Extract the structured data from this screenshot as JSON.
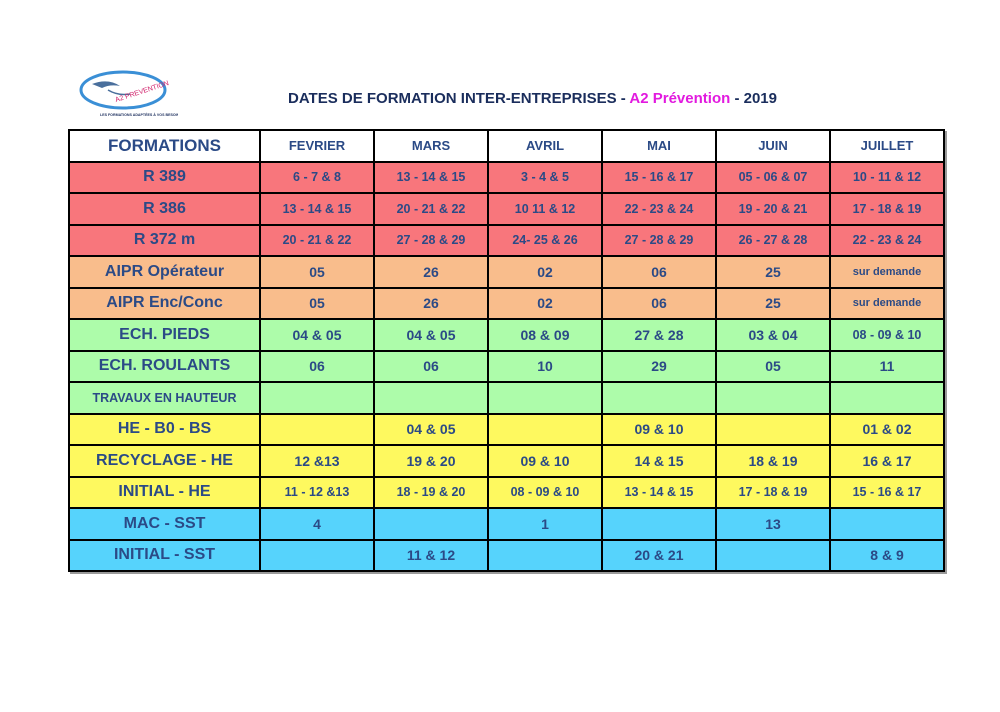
{
  "header": {
    "logo": {
      "text": "A2 PREVENTION",
      "tagline": "LES FORMATIONS ADAPTÉES À VOS BESOINS"
    },
    "title_prefix": "DATES DE FORMATION INTER-ENTREPRISES - ",
    "title_brand": "A2 Prévention",
    "title_suffix": " - 2019"
  },
  "colors": {
    "title": "#1a2d5c",
    "brand": "#e21adf",
    "header_text": "#e0105a",
    "cell_text": "#2b4a86",
    "red": "#f8767c",
    "orange": "#f9bd8c",
    "green": "#adfcaa",
    "yellow": "#fef95f",
    "blue": "#56d3fc"
  },
  "table": {
    "columns": [
      "FORMATIONS",
      "FEVRIER",
      "MARS",
      "AVRIL",
      "MAI",
      "JUIN",
      "JUILLET"
    ],
    "rows": [
      {
        "label": "R 389",
        "color": "red",
        "values": [
          "6 - 7 & 8",
          "13 - 14 & 15",
          "3 - 4 & 5",
          "15 - 16 & 17",
          "05 - 06 & 07",
          "10 - 11 & 12"
        ]
      },
      {
        "label": "R 386",
        "color": "red",
        "values": [
          "13 - 14 & 15",
          "20 - 21 & 22",
          "10 11 & 12",
          "22 - 23 & 24",
          "19 - 20 & 21",
          "17 - 18 & 19"
        ]
      },
      {
        "label": "R 372 m",
        "color": "red",
        "values": [
          "20 - 21 & 22",
          "27 - 28 & 29",
          "24- 25 & 26",
          "27 - 28 & 29",
          "26 - 27 & 28",
          "22 - 23 & 24"
        ]
      },
      {
        "label": "AIPR Opérateur",
        "color": "orange",
        "values": [
          "05",
          "26",
          "02",
          "06",
          "25",
          "sur demande"
        ]
      },
      {
        "label": "AIPR Enc/Conc",
        "color": "orange",
        "values": [
          "05",
          "26",
          "02",
          "06",
          "25",
          "sur demande"
        ]
      },
      {
        "label": "ECH. PIEDS",
        "color": "green",
        "values": [
          "04 & 05",
          "04 & 05",
          "08 & 09",
          "27 & 28",
          "03 & 04",
          "08 - 09 & 10"
        ]
      },
      {
        "label": "ECH. ROULANTS",
        "color": "green",
        "values": [
          "06",
          "06",
          "10",
          "29",
          "05",
          "11"
        ]
      },
      {
        "label": "TRAVAUX EN HAUTEUR",
        "color": "green",
        "values": [
          "",
          "",
          "",
          "",
          "",
          ""
        ]
      },
      {
        "label": "HE - B0 - BS",
        "color": "yellow",
        "values": [
          "",
          "04 & 05",
          "",
          "09 & 10",
          "",
          "01 & 02"
        ]
      },
      {
        "label": "RECYCLAGE - HE",
        "color": "yellow",
        "values": [
          "12 &13",
          "19 & 20",
          "09 & 10",
          "14 & 15",
          "18 & 19",
          "16 & 17"
        ]
      },
      {
        "label": "INITIAL - HE",
        "color": "yellow",
        "values": [
          "11 - 12 &13",
          "18 - 19 & 20",
          "08 - 09 & 10",
          "13 - 14 & 15",
          "17 - 18 & 19",
          "15 - 16 & 17"
        ]
      },
      {
        "label": "MAC - SST",
        "color": "blue",
        "values": [
          "4",
          "",
          "1",
          "",
          "13",
          ""
        ]
      },
      {
        "label": "INITIAL - SST",
        "color": "blue",
        "values": [
          "",
          "11 & 12",
          "",
          "20 & 21",
          "",
          "8 & 9"
        ]
      }
    ]
  }
}
